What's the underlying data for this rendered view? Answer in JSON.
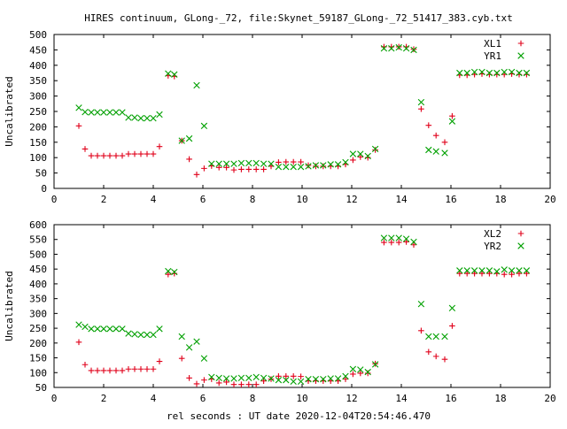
{
  "title": "HIRES continuum, GLong-_72, file:Skynet_59187_GLong-_72_51417_383.cyb.txt",
  "xlabel": "rel seconds : UT date 2020-12-04T20:54:46.470",
  "colors": {
    "plus": "#e0001a",
    "cross": "#00a000"
  },
  "chart_data": [
    {
      "type": "scatter",
      "ylabel": "Uncalibrated",
      "xlim": [
        0,
        20
      ],
      "ylim": [
        0,
        500
      ],
      "xticks": [
        0,
        2,
        4,
        6,
        8,
        10,
        12,
        14,
        16,
        18,
        20
      ],
      "yticks": [
        0,
        50,
        100,
        150,
        200,
        250,
        300,
        350,
        400,
        450,
        500
      ],
      "legend_position": "top-right",
      "series": [
        {
          "name": "XL1",
          "marker": "plus",
          "points": [
            [
              1.0,
              203
            ],
            [
              1.25,
              128
            ],
            [
              1.5,
              106
            ],
            [
              1.75,
              106
            ],
            [
              2.0,
              106
            ],
            [
              2.25,
              106
            ],
            [
              2.5,
              106
            ],
            [
              2.75,
              106
            ],
            [
              3.0,
              112
            ],
            [
              3.25,
              112
            ],
            [
              3.5,
              112
            ],
            [
              3.75,
              112
            ],
            [
              4.0,
              112
            ],
            [
              4.25,
              136
            ],
            [
              4.6,
              366
            ],
            [
              4.85,
              364
            ],
            [
              5.15,
              155
            ],
            [
              5.45,
              95
            ],
            [
              5.75,
              45
            ],
            [
              6.05,
              65
            ],
            [
              6.35,
              73
            ],
            [
              6.65,
              68
            ],
            [
              6.95,
              68
            ],
            [
              7.25,
              60
            ],
            [
              7.55,
              62
            ],
            [
              7.85,
              62
            ],
            [
              8.15,
              62
            ],
            [
              8.45,
              62
            ],
            [
              8.75,
              72
            ],
            [
              9.05,
              85
            ],
            [
              9.35,
              86
            ],
            [
              9.65,
              86
            ],
            [
              9.95,
              86
            ],
            [
              10.25,
              75
            ],
            [
              10.55,
              72
            ],
            [
              10.85,
              72
            ],
            [
              11.15,
              72
            ],
            [
              11.45,
              72
            ],
            [
              11.75,
              78
            ],
            [
              12.05,
              92
            ],
            [
              12.35,
              102
            ],
            [
              12.65,
              100
            ],
            [
              12.95,
              125
            ],
            [
              13.3,
              460
            ],
            [
              13.6,
              460
            ],
            [
              13.9,
              460
            ],
            [
              14.2,
              460
            ],
            [
              14.5,
              452
            ],
            [
              14.8,
              258
            ],
            [
              15.1,
              205
            ],
            [
              15.4,
              172
            ],
            [
              15.75,
              150
            ],
            [
              16.05,
              235
            ],
            [
              16.35,
              368
            ],
            [
              16.65,
              368
            ],
            [
              16.95,
              370
            ],
            [
              17.25,
              372
            ],
            [
              17.55,
              370
            ],
            [
              17.85,
              370
            ],
            [
              18.15,
              370
            ],
            [
              18.45,
              372
            ],
            [
              18.75,
              370
            ],
            [
              19.05,
              370
            ]
          ]
        },
        {
          "name": "YR1",
          "marker": "cross",
          "points": [
            [
              1.0,
              262
            ],
            [
              1.25,
              248
            ],
            [
              1.5,
              247
            ],
            [
              1.75,
              247
            ],
            [
              2.0,
              247
            ],
            [
              2.25,
              247
            ],
            [
              2.5,
              247
            ],
            [
              2.75,
              247
            ],
            [
              3.0,
              230
            ],
            [
              3.25,
              230
            ],
            [
              3.5,
              228
            ],
            [
              3.75,
              228
            ],
            [
              4.0,
              228
            ],
            [
              4.25,
              240
            ],
            [
              4.6,
              373
            ],
            [
              4.85,
              370
            ],
            [
              5.15,
              155
            ],
            [
              5.45,
              162
            ],
            [
              5.75,
              335
            ],
            [
              6.05,
              203
            ],
            [
              6.35,
              80
            ],
            [
              6.65,
              80
            ],
            [
              6.95,
              80
            ],
            [
              7.25,
              80
            ],
            [
              7.55,
              82
            ],
            [
              7.85,
              82
            ],
            [
              8.15,
              82
            ],
            [
              8.45,
              80
            ],
            [
              8.75,
              80
            ],
            [
              9.05,
              70
            ],
            [
              9.35,
              70
            ],
            [
              9.65,
              70
            ],
            [
              9.95,
              70
            ],
            [
              10.25,
              72
            ],
            [
              10.55,
              75
            ],
            [
              10.85,
              75
            ],
            [
              11.15,
              78
            ],
            [
              11.45,
              78
            ],
            [
              11.75,
              85
            ],
            [
              12.05,
              112
            ],
            [
              12.35,
              112
            ],
            [
              12.65,
              105
            ],
            [
              12.95,
              128
            ],
            [
              13.3,
              455
            ],
            [
              13.6,
              455
            ],
            [
              13.9,
              458
            ],
            [
              14.2,
              455
            ],
            [
              14.5,
              450
            ],
            [
              14.8,
              280
            ],
            [
              15.1,
              125
            ],
            [
              15.4,
              120
            ],
            [
              15.75,
              115
            ],
            [
              16.05,
              218
            ],
            [
              16.35,
              375
            ],
            [
              16.65,
              375
            ],
            [
              16.95,
              378
            ],
            [
              17.25,
              378
            ],
            [
              17.55,
              375
            ],
            [
              17.85,
              375
            ],
            [
              18.15,
              378
            ],
            [
              18.45,
              378
            ],
            [
              18.75,
              375
            ],
            [
              19.05,
              375
            ]
          ]
        }
      ]
    },
    {
      "type": "scatter",
      "ylabel": "Uncalibrated",
      "xlim": [
        0,
        20
      ],
      "ylim": [
        50,
        600
      ],
      "xticks": [
        0,
        2,
        4,
        6,
        8,
        10,
        12,
        14,
        16,
        18,
        20
      ],
      "yticks": [
        50,
        100,
        150,
        200,
        250,
        300,
        350,
        400,
        450,
        500,
        550,
        600
      ],
      "legend_position": "top-right",
      "series": [
        {
          "name": "XL2",
          "marker": "plus",
          "points": [
            [
              1.0,
              203
            ],
            [
              1.25,
              127
            ],
            [
              1.5,
              107
            ],
            [
              1.75,
              107
            ],
            [
              2.0,
              107
            ],
            [
              2.25,
              107
            ],
            [
              2.5,
              107
            ],
            [
              2.75,
              107
            ],
            [
              3.0,
              112
            ],
            [
              3.25,
              112
            ],
            [
              3.5,
              112
            ],
            [
              3.75,
              112
            ],
            [
              4.0,
              112
            ],
            [
              4.25,
              138
            ],
            [
              4.6,
              432
            ],
            [
              4.85,
              435
            ],
            [
              5.15,
              148
            ],
            [
              5.45,
              82
            ],
            [
              5.75,
              62
            ],
            [
              6.05,
              75
            ],
            [
              6.35,
              78
            ],
            [
              6.65,
              65
            ],
            [
              6.95,
              68
            ],
            [
              7.25,
              60
            ],
            [
              7.55,
              60
            ],
            [
              7.85,
              60
            ],
            [
              8.15,
              60
            ],
            [
              8.45,
              72
            ],
            [
              8.75,
              78
            ],
            [
              9.05,
              88
            ],
            [
              9.35,
              88
            ],
            [
              9.65,
              88
            ],
            [
              9.95,
              87
            ],
            [
              10.25,
              72
            ],
            [
              10.55,
              72
            ],
            [
              10.85,
              72
            ],
            [
              11.15,
              72
            ],
            [
              11.45,
              72
            ],
            [
              11.75,
              78
            ],
            [
              12.05,
              95
            ],
            [
              12.35,
              98
            ],
            [
              12.65,
              98
            ],
            [
              12.95,
              130
            ],
            [
              13.3,
              540
            ],
            [
              13.6,
              540
            ],
            [
              13.9,
              540
            ],
            [
              14.2,
              542
            ],
            [
              14.5,
              532
            ],
            [
              14.8,
              242
            ],
            [
              15.1,
              170
            ],
            [
              15.4,
              155
            ],
            [
              15.75,
              145
            ],
            [
              16.05,
              258
            ],
            [
              16.35,
              435
            ],
            [
              16.65,
              435
            ],
            [
              16.95,
              435
            ],
            [
              17.25,
              435
            ],
            [
              17.55,
              435
            ],
            [
              17.85,
              435
            ],
            [
              18.15,
              432
            ],
            [
              18.45,
              432
            ],
            [
              18.75,
              435
            ],
            [
              19.05,
              435
            ]
          ]
        },
        {
          "name": "YR2",
          "marker": "cross",
          "points": [
            [
              1.0,
              262
            ],
            [
              1.25,
              255
            ],
            [
              1.5,
              248
            ],
            [
              1.75,
              248
            ],
            [
              2.0,
              248
            ],
            [
              2.25,
              248
            ],
            [
              2.5,
              248
            ],
            [
              2.75,
              248
            ],
            [
              3.0,
              232
            ],
            [
              3.25,
              230
            ],
            [
              3.5,
              228
            ],
            [
              3.75,
              228
            ],
            [
              4.0,
              228
            ],
            [
              4.25,
              248
            ],
            [
              4.6,
              443
            ],
            [
              4.85,
              440
            ],
            [
              5.15,
              222
            ],
            [
              5.45,
              185
            ],
            [
              5.75,
              205
            ],
            [
              6.05,
              148
            ],
            [
              6.35,
              85
            ],
            [
              6.65,
              82
            ],
            [
              6.95,
              80
            ],
            [
              7.25,
              80
            ],
            [
              7.55,
              82
            ],
            [
              7.85,
              82
            ],
            [
              8.15,
              85
            ],
            [
              8.45,
              82
            ],
            [
              8.75,
              80
            ],
            [
              9.05,
              75
            ],
            [
              9.35,
              75
            ],
            [
              9.65,
              70
            ],
            [
              9.95,
              70
            ],
            [
              10.25,
              78
            ],
            [
              10.55,
              78
            ],
            [
              10.85,
              78
            ],
            [
              11.15,
              80
            ],
            [
              11.45,
              80
            ],
            [
              11.75,
              88
            ],
            [
              12.05,
              112
            ],
            [
              12.35,
              110
            ],
            [
              12.65,
              102
            ],
            [
              12.95,
              128
            ],
            [
              13.3,
              555
            ],
            [
              13.6,
              555
            ],
            [
              13.9,
              555
            ],
            [
              14.2,
              552
            ],
            [
              14.5,
              542
            ],
            [
              14.8,
              332
            ],
            [
              15.1,
              222
            ],
            [
              15.4,
              222
            ],
            [
              15.75,
              222
            ],
            [
              16.05,
              318
            ],
            [
              16.35,
              445
            ],
            [
              16.65,
              445
            ],
            [
              16.95,
              445
            ],
            [
              17.25,
              445
            ],
            [
              17.55,
              445
            ],
            [
              17.85,
              442
            ],
            [
              18.15,
              448
            ],
            [
              18.45,
              445
            ],
            [
              18.75,
              445
            ],
            [
              19.05,
              445
            ]
          ]
        }
      ]
    }
  ]
}
